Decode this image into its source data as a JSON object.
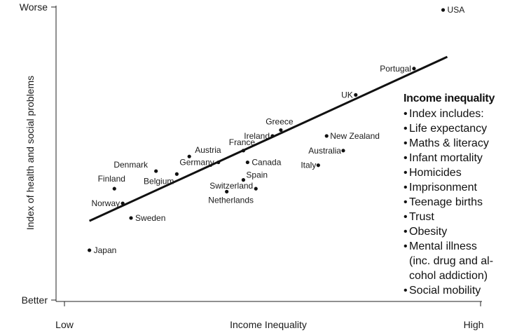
{
  "chart_data": {
    "type": "scatter",
    "xlabel": "Income Inequality",
    "ylabel": "Index of health and social problems",
    "x_tick_labels": {
      "low": "Low",
      "high": "High"
    },
    "y_tick_labels": {
      "low": "Better",
      "high": "Worse"
    },
    "xlim": [
      0,
      100
    ],
    "ylim": [
      0,
      100
    ],
    "grid": false,
    "points": [
      {
        "label": "USA",
        "x": 91,
        "y": 99
      },
      {
        "label": "Portugal",
        "x": 84,
        "y": 79
      },
      {
        "label": "UK",
        "x": 70,
        "y": 70
      },
      {
        "label": "Greece",
        "x": 52,
        "y": 58
      },
      {
        "label": "Ireland",
        "x": 50,
        "y": 56
      },
      {
        "label": "New Zealand",
        "x": 63,
        "y": 56
      },
      {
        "label": "France",
        "x": 43,
        "y": 51
      },
      {
        "label": "Australia",
        "x": 67,
        "y": 51
      },
      {
        "label": "Austria",
        "x": 30,
        "y": 49
      },
      {
        "label": "Canada",
        "x": 44,
        "y": 47
      },
      {
        "label": "Germany",
        "x": 37,
        "y": 47
      },
      {
        "label": "Italy",
        "x": 61,
        "y": 46
      },
      {
        "label": "Denmark",
        "x": 22,
        "y": 44
      },
      {
        "label": "Spain",
        "x": 43,
        "y": 41
      },
      {
        "label": "Belgium",
        "x": 27,
        "y": 43
      },
      {
        "label": "Switzerland",
        "x": 46,
        "y": 38
      },
      {
        "label": "Finland",
        "x": 12,
        "y": 38
      },
      {
        "label": "Netherlands",
        "x": 39,
        "y": 37
      },
      {
        "label": "Norway",
        "x": 14,
        "y": 33
      },
      {
        "label": "Sweden",
        "x": 16,
        "y": 28
      },
      {
        "label": "Japan",
        "x": 6,
        "y": 17
      }
    ],
    "trendline": {
      "x": [
        6,
        92
      ],
      "y": [
        27,
        83
      ]
    }
  },
  "sidebar": {
    "title": "Income inequality",
    "items": [
      "Index includes:",
      "Life expectancy",
      "Maths & literacy",
      "Infant mortality",
      "Homicides",
      "Imprisonment",
      "Teenage births",
      "Trust",
      "Obesity",
      "Mental illness\n(inc. drug and al-\ncohol addiction)",
      "Social mobility"
    ]
  }
}
